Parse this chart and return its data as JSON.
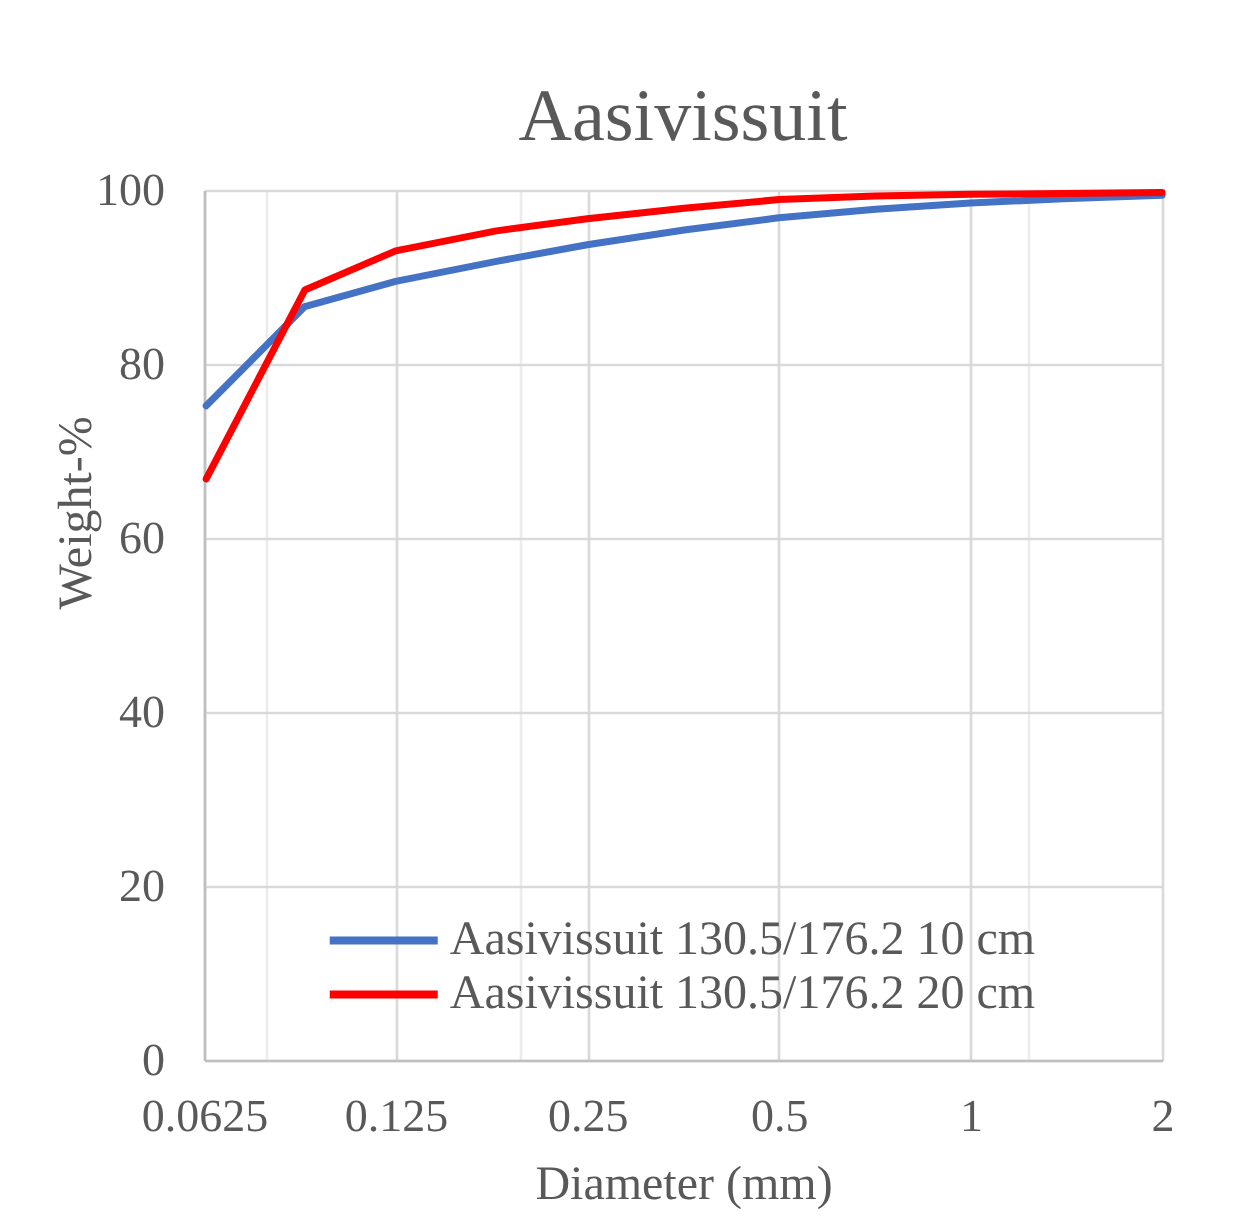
{
  "chart_data": {
    "type": "line",
    "title": "Aasivissuit",
    "xlabel": "Diameter (mm)",
    "ylabel": "Weight-%",
    "log": "x",
    "x": [
      0.063,
      0.09,
      0.125,
      0.18,
      0.25,
      0.355,
      0.5,
      0.71,
      1,
      1.4,
      2
    ],
    "series": [
      {
        "name": "Aasivissuit 130.5/176.2 10 cm",
        "color": "#4472c4",
        "values": [
          75.2,
          86.6,
          89.5,
          91.8,
          93.7,
          95.4,
          96.8,
          97.8,
          98.5,
          99.0,
          99.4
        ]
      },
      {
        "name": "Aasivissuit 130.5/176.2 20 cm",
        "color": "#ff0000",
        "values": [
          66.8,
          88.5,
          93.0,
          95.3,
          96.7,
          97.9,
          98.9,
          99.3,
          99.5,
          99.6,
          99.7
        ]
      }
    ],
    "xlim": [
      0.0625,
      2
    ],
    "xticks": [
      0.0625,
      {
        "value": 0.078,
        "label": null
      },
      0.125,
      {
        "value": 0.196,
        "label": null
      },
      0.25,
      0.5,
      1,
      {
        "value": 1.23,
        "label": null
      },
      2
    ],
    "ylim": [
      0,
      100
    ],
    "yticks": [
      0,
      20,
      40,
      60,
      80,
      100
    ],
    "grid": true,
    "legend": "bottom",
    "marker": "none",
    "line_style": "solid"
  }
}
